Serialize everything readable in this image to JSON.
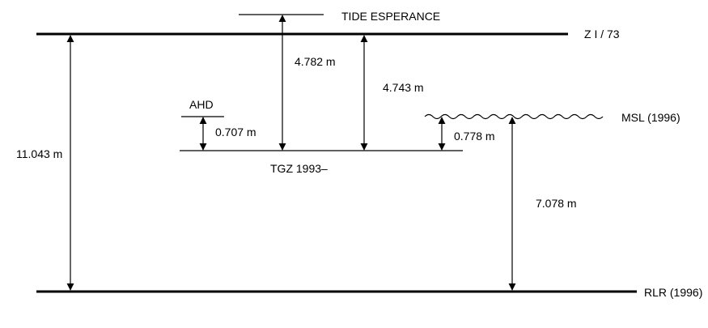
{
  "diagram": {
    "labels": {
      "tide_station": "TIDE ESPERANCE",
      "zero_datum": "Z I / 73",
      "ahd": "AHD",
      "msl": "MSL (1996)",
      "tgz": "TGZ 1993–",
      "rlr": "RLR (1996)"
    },
    "measurements": {
      "total_rlr_to_zi73": "11.043 m",
      "tide_to_tgz": "4.782 m",
      "zi73_to_tgz": "4.743 m",
      "ahd_to_tgz": "0.707 m",
      "msl_to_tgz": "0.778 m",
      "msl_to_rlr": "7.078 m"
    }
  }
}
